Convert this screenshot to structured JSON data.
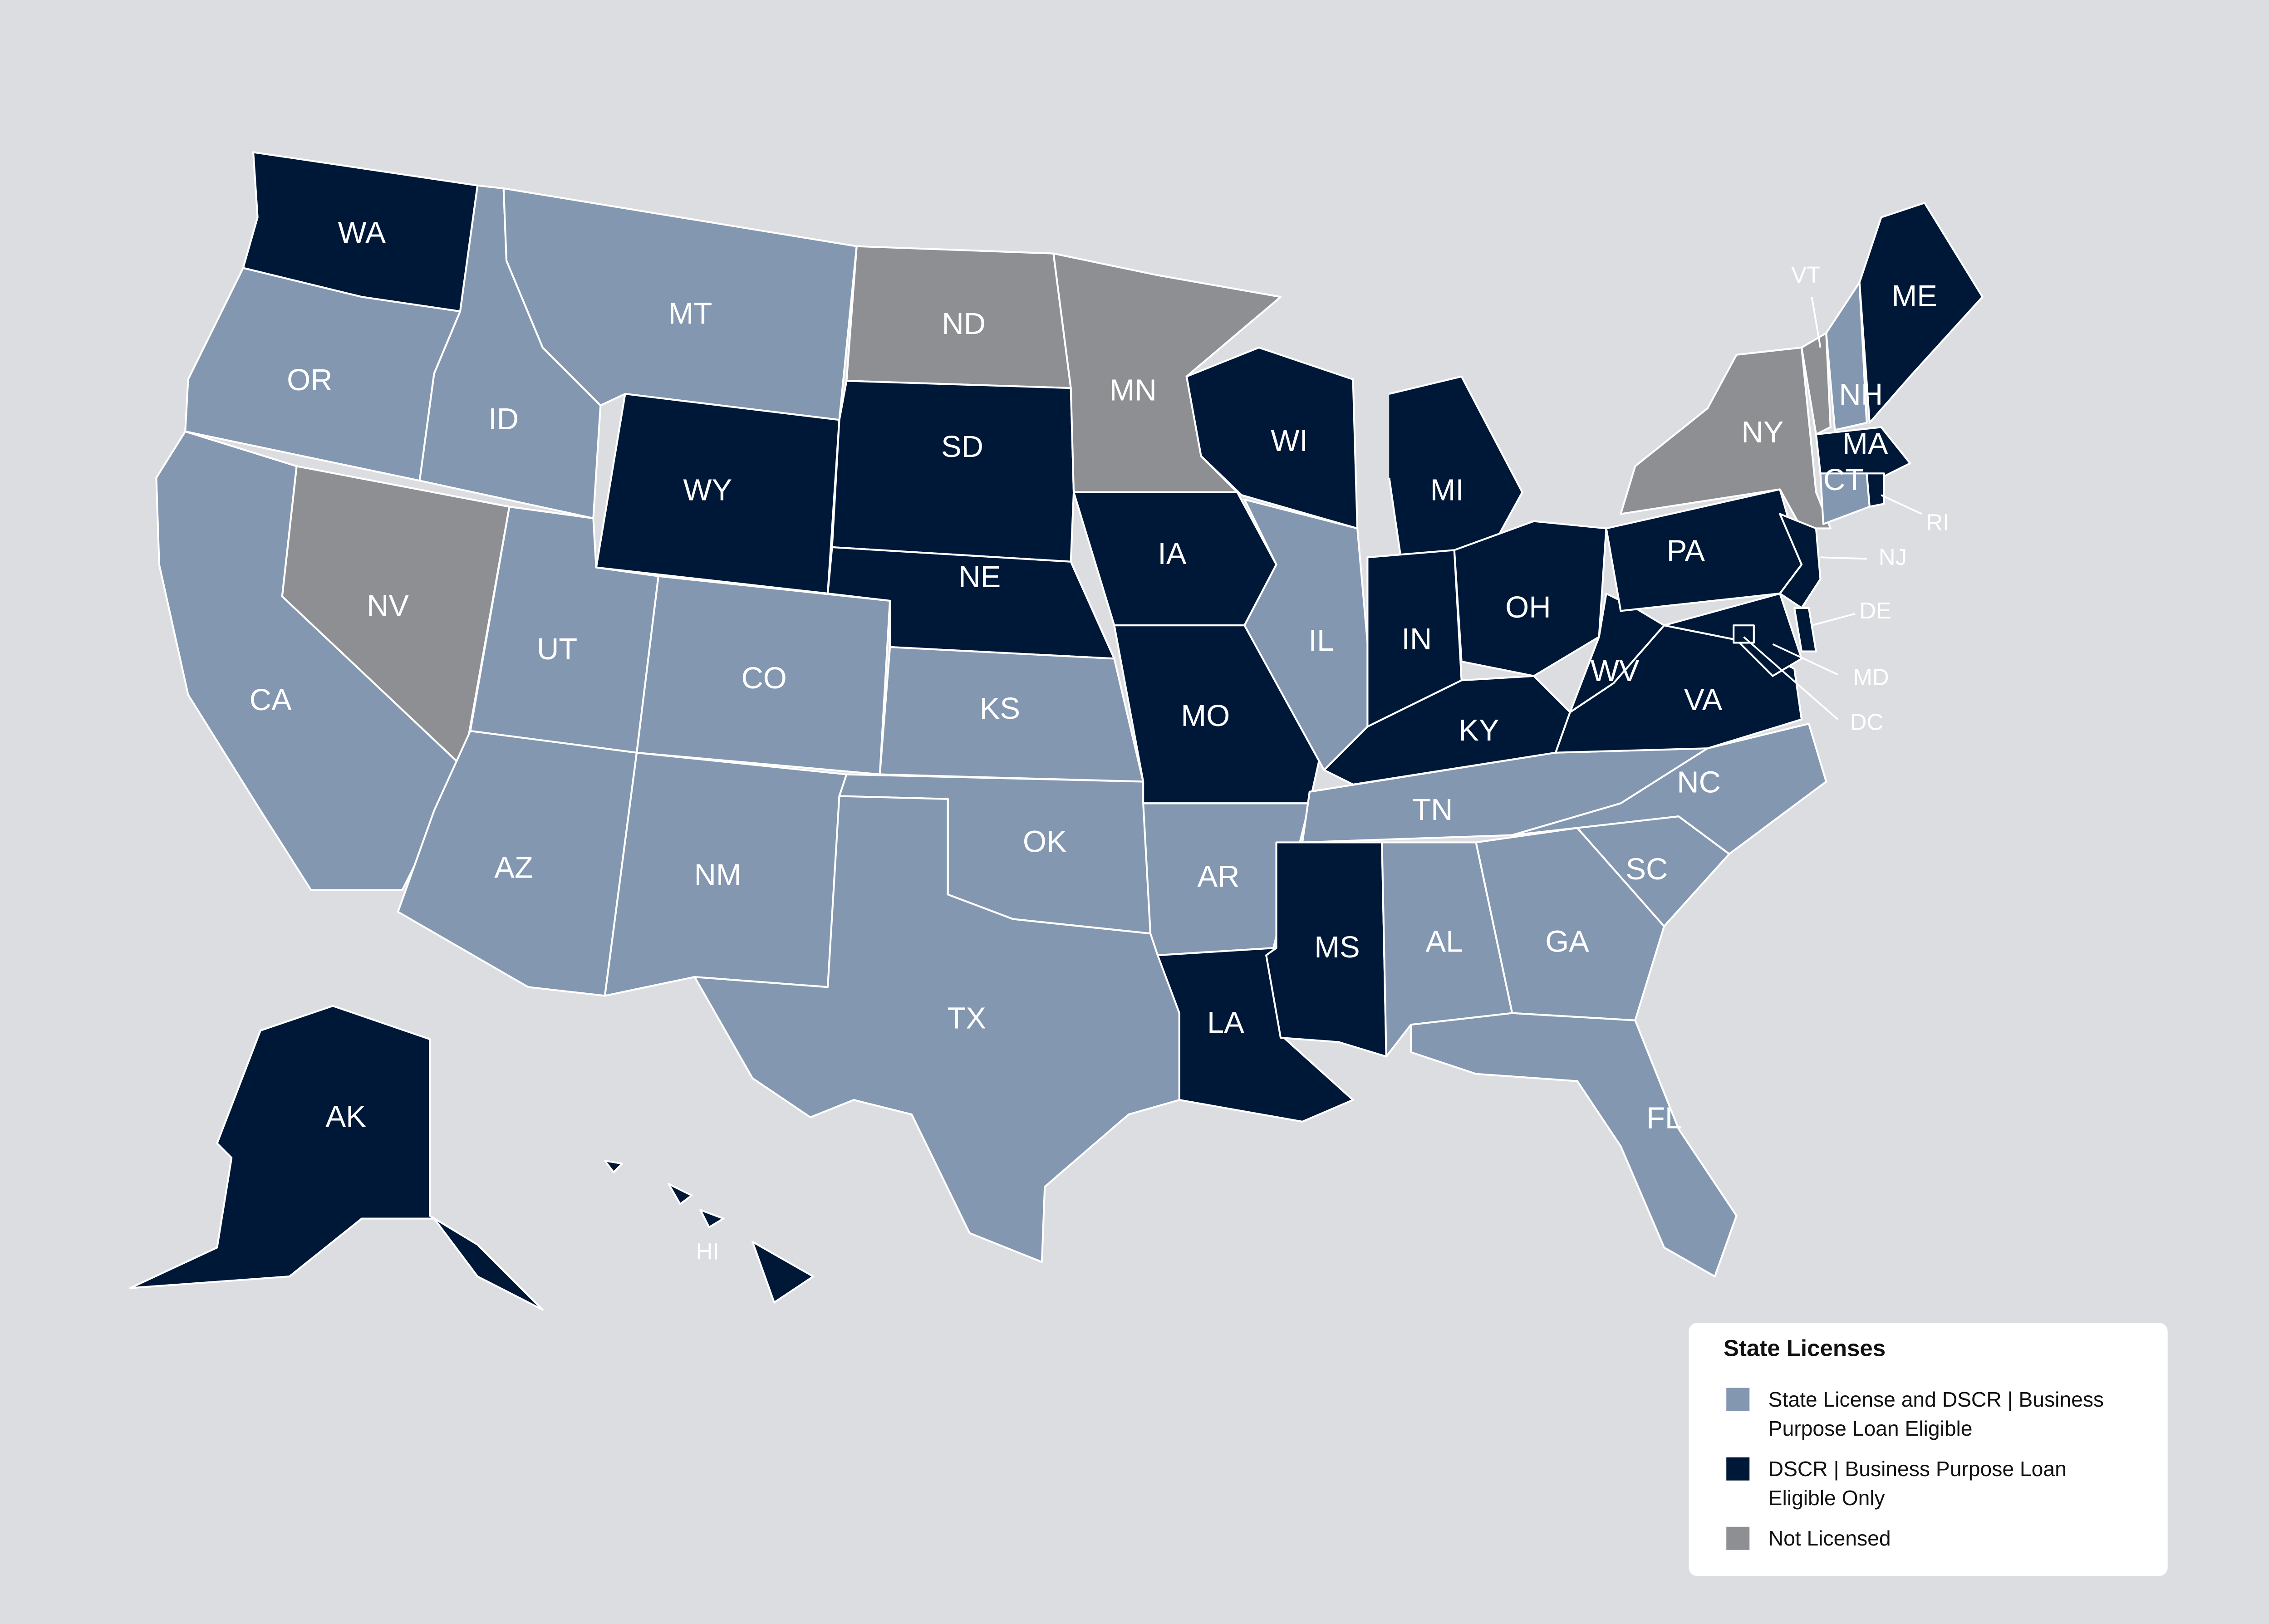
{
  "legend": {
    "title": "State Licenses",
    "items": [
      {
        "label": "State License and DSCR | Business Purpose Loan Eligible",
        "color": "#8497b0"
      },
      {
        "label": "DSCR | Business Purpose Loan Eligible Only",
        "color": "#001838"
      },
      {
        "label": "Not Licensed",
        "color": "#8e8f93"
      }
    ]
  },
  "states": [
    {
      "label": "WA",
      "group": 1
    },
    {
      "label": "OR",
      "group": 0
    },
    {
      "label": "CA",
      "group": 0
    },
    {
      "label": "NV",
      "group": 2
    },
    {
      "label": "ID",
      "group": 0
    },
    {
      "label": "MT",
      "group": 0
    },
    {
      "label": "WY",
      "group": 1
    },
    {
      "label": "UT",
      "group": 0
    },
    {
      "label": "AZ",
      "group": 0
    },
    {
      "label": "CO",
      "group": 0
    },
    {
      "label": "NM",
      "group": 0
    },
    {
      "label": "ND",
      "group": 2
    },
    {
      "label": "SD",
      "group": 1
    },
    {
      "label": "NE",
      "group": 1
    },
    {
      "label": "KS",
      "group": 0
    },
    {
      "label": "OK",
      "group": 0
    },
    {
      "label": "TX",
      "group": 0
    },
    {
      "label": "MN",
      "group": 2
    },
    {
      "label": "IA",
      "group": 1
    },
    {
      "label": "MO",
      "group": 1
    },
    {
      "label": "AR",
      "group": 0
    },
    {
      "label": "LA",
      "group": 1
    },
    {
      "label": "WI",
      "group": 1
    },
    {
      "label": "IL",
      "group": 0
    },
    {
      "label": "MI",
      "group": 1
    },
    {
      "label": "IN",
      "group": 1
    },
    {
      "label": "OH",
      "group": 1
    },
    {
      "label": "KY",
      "group": 1
    },
    {
      "label": "TN",
      "group": 0
    },
    {
      "label": "MS",
      "group": 1
    },
    {
      "label": "AL",
      "group": 0
    },
    {
      "label": "GA",
      "group": 0
    },
    {
      "label": "FL",
      "group": 0
    },
    {
      "label": "SC",
      "group": 0
    },
    {
      "label": "NC",
      "group": 0
    },
    {
      "label": "VA",
      "group": 1
    },
    {
      "label": "WV",
      "group": 1
    },
    {
      "label": "PA",
      "group": 1
    },
    {
      "label": "NY",
      "group": 2
    },
    {
      "label": "NJ",
      "group": 1
    },
    {
      "label": "DE",
      "group": 1
    },
    {
      "label": "MD",
      "group": 1
    },
    {
      "label": "DC",
      "group": 1
    },
    {
      "label": "VT",
      "group": 2
    },
    {
      "label": "NH",
      "group": 0
    },
    {
      "label": "ME",
      "group": 1
    },
    {
      "label": "MA",
      "group": 1
    },
    {
      "label": "CT",
      "group": 0
    },
    {
      "label": "RI",
      "group": 1
    },
    {
      "label": "AK",
      "group": 1
    },
    {
      "label": "HI",
      "group": 1
    }
  ]
}
